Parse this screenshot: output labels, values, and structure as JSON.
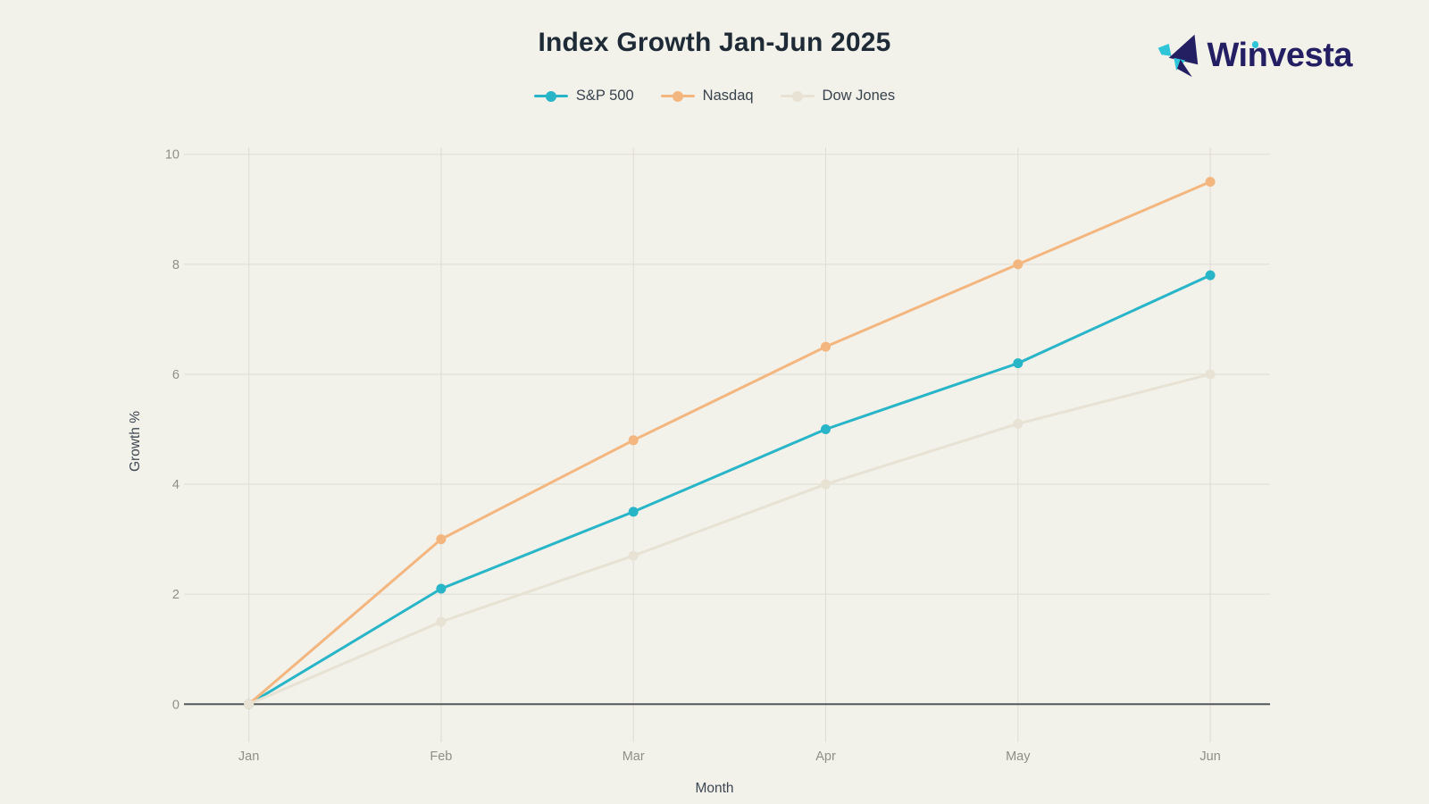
{
  "page": {
    "background": "#f2f1ea"
  },
  "header": {
    "title": "Index Growth Jan-Jun 2025"
  },
  "logo": {
    "brand": "Winvesta",
    "navy": "#241e63",
    "teal": "#2fc5d8"
  },
  "chart_data": {
    "type": "line",
    "title": "Index Growth Jan-Jun 2025",
    "xlabel": "Month",
    "ylabel": "Growth %",
    "categories": [
      "Jan",
      "Feb",
      "Mar",
      "Apr",
      "May",
      "Jun"
    ],
    "series": [
      {
        "name": "S&P 500",
        "color": "#28b5c8",
        "values": [
          0,
          2.1,
          3.5,
          5.0,
          6.2,
          7.8
        ]
      },
      {
        "name": "Nasdaq",
        "color": "#f4b67f",
        "values": [
          0,
          3.0,
          4.8,
          6.5,
          8.0,
          9.5
        ]
      },
      {
        "name": "Dow Jones",
        "color": "#e8e2d4",
        "values": [
          0,
          1.5,
          2.7,
          4.0,
          5.1,
          6.0
        ]
      }
    ],
    "yticks": [
      0,
      2,
      4,
      6,
      8,
      10
    ],
    "ylim": [
      0,
      10
    ],
    "grid": true,
    "legend_position": "top"
  },
  "colors": {
    "grid": "#dfddd3",
    "axis": "#55585b",
    "tick_label": "#8f8f88",
    "axis_title": "#3d4752",
    "title": "#1e2b37",
    "legend_text": "#39434d"
  }
}
